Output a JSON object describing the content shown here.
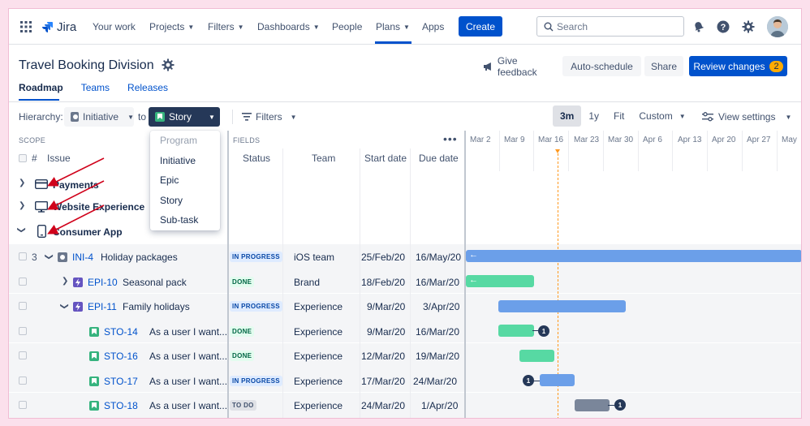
{
  "nav": {
    "logo": "Jira",
    "items": [
      {
        "label": "Your work",
        "dropdown": false
      },
      {
        "label": "Projects",
        "dropdown": true
      },
      {
        "label": "Filters",
        "dropdown": true
      },
      {
        "label": "Dashboards",
        "dropdown": true
      },
      {
        "label": "People",
        "dropdown": false
      },
      {
        "label": "Plans",
        "dropdown": true,
        "active": true
      },
      {
        "label": "Apps",
        "dropdown": false
      }
    ],
    "create_label": "Create",
    "search_placeholder": "Search"
  },
  "page": {
    "title": "Travel Booking Division",
    "give_feedback": "Give feedback",
    "auto_schedule": "Auto-schedule",
    "share": "Share",
    "review_changes": "Review changes",
    "review_count": "2",
    "tabs": [
      "Roadmap",
      "Teams",
      "Releases"
    ]
  },
  "toolbar": {
    "hierarchy_label": "Hierarchy:",
    "from_level": "Initiative",
    "to_label": "to",
    "to_level": "Story",
    "filters": "Filters",
    "zoom": [
      "3m",
      "1y",
      "Fit",
      "Custom"
    ],
    "view_settings": "View settings"
  },
  "dropdown": {
    "items": [
      "Program",
      "Initiative",
      "Epic",
      "Story",
      "Sub-task"
    ]
  },
  "columns": {
    "scope": "SCOPE",
    "hash": "#",
    "issue": "Issue",
    "fields": "FIELDS",
    "status": "Status",
    "team": "Team",
    "start": "Start date",
    "due": "Due date"
  },
  "timeline": {
    "months": [
      "Mar 2",
      "Mar 9",
      "Mar 16",
      "Mar 23",
      "Mar 30",
      "Apr 6",
      "Apr 13",
      "Apr 20",
      "Apr 27",
      "May"
    ]
  },
  "groups": [
    {
      "label": "Payments",
      "icon": "credit-card-icon"
    },
    {
      "label": "Website Experience",
      "icon": "desktop-icon"
    },
    {
      "label": "Consumer App",
      "icon": "mobile-icon"
    }
  ],
  "rows": [
    {
      "count": "3",
      "key": "INI-4",
      "summary": "Holiday packages",
      "status": "IN PROGRESS",
      "team": "iOS team",
      "start": "25/Feb/20",
      "due": "16/May/20",
      "type": "initiative"
    },
    {
      "count": "",
      "key": "EPI-10",
      "summary": "Seasonal pack",
      "status": "DONE",
      "team": "Brand",
      "start": "18/Feb/20",
      "due": "16/Mar/20",
      "type": "epic"
    },
    {
      "count": "",
      "key": "EPI-11",
      "summary": "Family holidays",
      "status": "IN PROGRESS",
      "team": "Experience",
      "start": "9/Mar/20",
      "due": "3/Apr/20",
      "type": "epic"
    },
    {
      "count": "",
      "key": "STO-14",
      "summary": "As a user I want...",
      "status": "DONE",
      "team": "Experience",
      "start": "9/Mar/20",
      "due": "16/Mar/20",
      "type": "story",
      "dep": "1"
    },
    {
      "count": "",
      "key": "STO-16",
      "summary": "As a user I want...",
      "status": "DONE",
      "team": "Experience",
      "start": "12/Mar/20",
      "due": "19/Mar/20",
      "type": "story"
    },
    {
      "count": "",
      "key": "STO-17",
      "summary": "As a user I want...",
      "status": "IN PROGRESS",
      "team": "Experience",
      "start": "17/Mar/20",
      "due": "24/Mar/20",
      "type": "story",
      "dep": "1"
    },
    {
      "count": "",
      "key": "STO-18",
      "summary": "As a user I want...",
      "status": "TO DO",
      "team": "Experience",
      "start": "24/Mar/20",
      "due": "1/Apr/20",
      "type": "story",
      "dep": "1"
    }
  ],
  "colors": {
    "brand": "#0052CC",
    "bar_blue": "#6B9FE9",
    "bar_green": "#57D9A3",
    "bar_grey": "#7A869A",
    "annotation_arrow": "#D0021B"
  }
}
